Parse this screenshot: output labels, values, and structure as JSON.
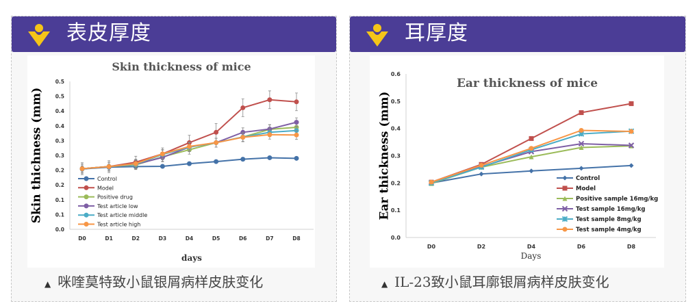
{
  "left_panel": {
    "header": "表皮厚度",
    "caption": "咪喹莫特致小鼠银屑病样皮肤变化",
    "caption_icon": "triangle-up-icon"
  },
  "right_panel": {
    "header": "耳厚度",
    "caption": "IL-23致小鼠耳廓银屑病样皮肤变化",
    "caption_icon": "triangle-up-icon"
  },
  "colors": {
    "header_bg": "#4b3d96",
    "logo": "#f5c518"
  },
  "chart_data": [
    {
      "type": "line",
      "title": "Skin thickness of mice",
      "xlabel": "days",
      "ylabel": "Skin thichness (mm)",
      "ylim": [
        0,
        0.5
      ],
      "yticks": [
        0,
        0.05,
        0.1,
        0.15,
        0.2,
        0.25,
        0.3,
        0.35,
        0.4,
        0.45,
        0.5
      ],
      "ytick_labels": [
        "0.0",
        "0.1",
        "0.1",
        "0.2",
        "0.2",
        "0.3",
        "0.3",
        "0.4",
        "0.4",
        "0.5",
        "0.5"
      ],
      "categories": [
        "D0",
        "D1",
        "D2",
        "D3",
        "D4",
        "D5",
        "D6",
        "D7",
        "D8"
      ],
      "legend": "left-middle",
      "series": [
        {
          "name": "Control",
          "color": "#4472a8",
          "marker": "circle",
          "values": [
            0.204,
            0.21,
            0.212,
            0.213,
            0.222,
            0.229,
            0.237,
            0.242,
            0.24
          ],
          "errors": [
            0.01,
            0.01,
            0.01,
            0.005,
            0.005,
            0.005,
            0.005,
            0.005,
            0.005
          ]
        },
        {
          "name": "Model",
          "color": "#c0504d",
          "marker": "circle",
          "values": [
            0.205,
            0.212,
            0.227,
            0.255,
            0.293,
            0.328,
            0.411,
            0.438,
            0.431
          ],
          "errors": [
            0.02,
            0.02,
            0.02,
            0.02,
            0.025,
            0.03,
            0.03,
            0.03,
            0.03
          ]
        },
        {
          "name": "Positive drug",
          "color": "#9bbb59",
          "marker": "circle",
          "values": [
            0.205,
            0.212,
            0.218,
            0.245,
            0.269,
            0.293,
            0.312,
            0.338,
            0.345
          ],
          "errors": [
            0.015,
            0.015,
            0.015,
            0.015,
            0.015,
            0.015,
            0.015,
            0.015,
            0.015
          ]
        },
        {
          "name": "Test article low",
          "color": "#7e5fa5",
          "marker": "circle",
          "values": [
            0.205,
            0.212,
            0.22,
            0.243,
            0.278,
            0.293,
            0.328,
            0.339,
            0.362
          ],
          "errors": [
            0.015,
            0.015,
            0.015,
            0.015,
            0.015,
            0.015,
            0.015,
            0.015,
            0.015
          ]
        },
        {
          "name": "Test article middle",
          "color": "#4bacc6",
          "marker": "circle",
          "values": [
            0.205,
            0.212,
            0.22,
            0.253,
            0.278,
            0.293,
            0.312,
            0.328,
            0.334
          ],
          "errors": [
            0.015,
            0.015,
            0.015,
            0.015,
            0.015,
            0.015,
            0.015,
            0.015,
            0.015
          ]
        },
        {
          "name": "Test article high",
          "color": "#f79646",
          "marker": "circle",
          "values": [
            0.205,
            0.212,
            0.222,
            0.255,
            0.28,
            0.293,
            0.311,
            0.32,
            0.319
          ],
          "errors": [
            0.015,
            0.015,
            0.015,
            0.015,
            0.015,
            0.015,
            0.015,
            0.015,
            0.015
          ]
        }
      ]
    },
    {
      "type": "line",
      "title": "Ear thickness of mice",
      "xlabel": "Days",
      "ylabel": "Ear thickness (mm)",
      "ylim": [
        0,
        0.6
      ],
      "yticks": [
        0,
        0.1,
        0.2,
        0.3,
        0.4,
        0.5,
        0.6
      ],
      "ytick_labels": [
        "0.0",
        "0.1",
        "0.2",
        "0.3",
        "0.4",
        "0.5",
        "0.6"
      ],
      "categories": [
        "D0",
        "D2",
        "D4",
        "D6",
        "D8"
      ],
      "legend": "bottom-right",
      "series": [
        {
          "name": "Control",
          "color": "#4472a8",
          "marker": "diamond",
          "values": [
            0.2,
            0.233,
            0.244,
            0.254,
            0.264
          ]
        },
        {
          "name": "Model",
          "color": "#c0504d",
          "marker": "square",
          "values": [
            0.203,
            0.268,
            0.363,
            0.458,
            0.491
          ]
        },
        {
          "name": "Positive sample 16mg/kg",
          "color": "#9bbb59",
          "marker": "triangle",
          "values": [
            0.198,
            0.258,
            0.296,
            0.33,
            0.336
          ]
        },
        {
          "name": "Test sample 16mg/kg",
          "color": "#7e5fa5",
          "marker": "x",
          "values": [
            0.2,
            0.26,
            0.315,
            0.344,
            0.338
          ]
        },
        {
          "name": "Test sample 8mg/kg",
          "color": "#4bacc6",
          "marker": "star",
          "values": [
            0.2,
            0.258,
            0.322,
            0.38,
            0.39
          ]
        },
        {
          "name": "Test sample 4mg/kg",
          "color": "#f79646",
          "marker": "circle",
          "values": [
            0.203,
            0.265,
            0.327,
            0.393,
            0.389
          ]
        }
      ]
    }
  ]
}
